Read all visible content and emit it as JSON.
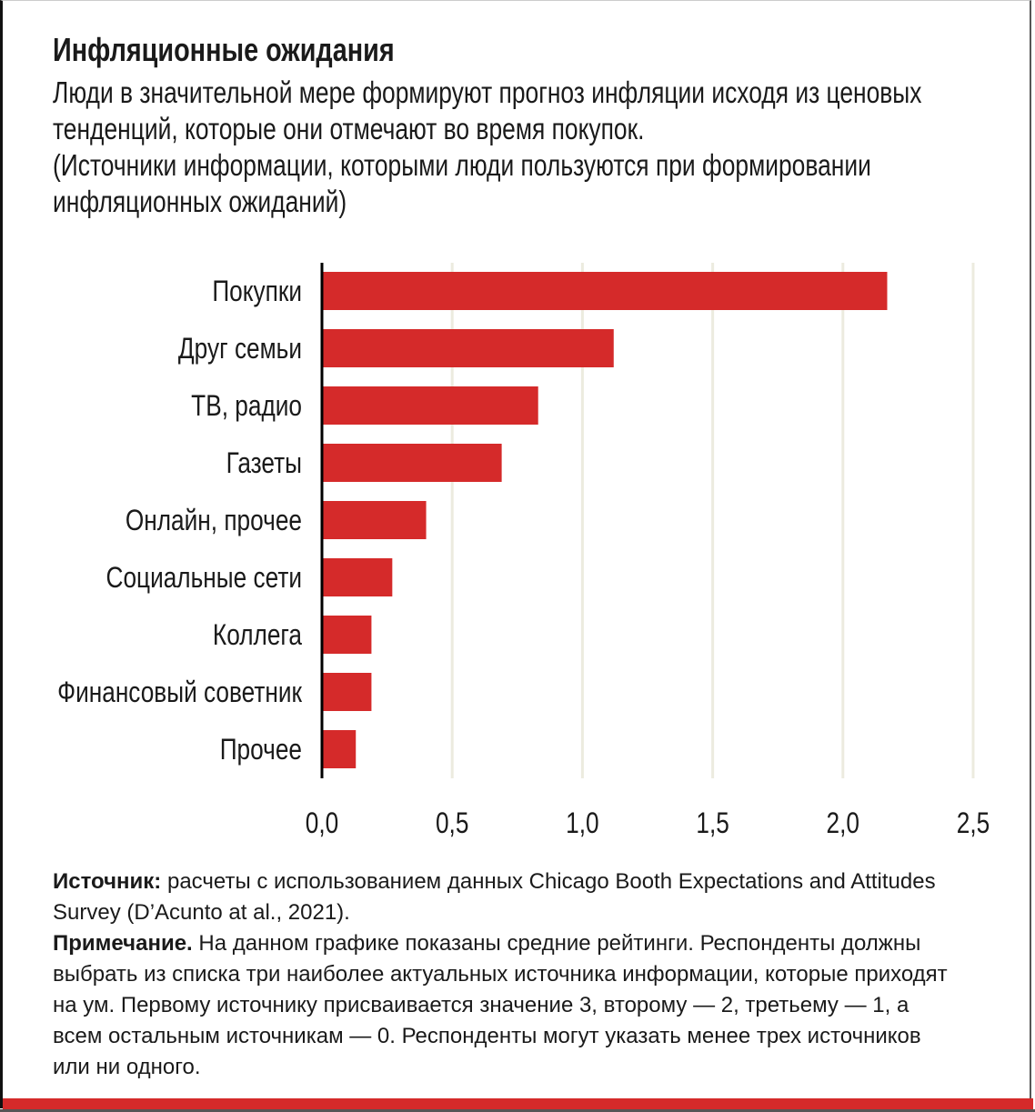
{
  "title": "Инфляционные ожидания",
  "subtitle_lines": [
    "Люди в значительной мере формируют прогноз инфляции исходя из ценовых",
    "тенденций, которые они отмечают во время покупок.",
    "(Источники информации, которыми люди пользуются при формировании",
    "инфляционных ожиданий)"
  ],
  "chart_data": {
    "type": "bar",
    "orientation": "horizontal",
    "categories": [
      "Покупки",
      "Друг семьи",
      "ТВ, радио",
      "Газеты",
      "Онлайн, прочее",
      "Социальные сети",
      "Коллега",
      "Финансовый советник",
      "Прочее"
    ],
    "values": [
      2.17,
      1.12,
      0.83,
      0.69,
      0.4,
      0.27,
      0.19,
      0.19,
      0.13
    ],
    "xlim": [
      0,
      2.5
    ],
    "xticks": [
      "0,0",
      "0,5",
      "1,0",
      "1,5",
      "2,0",
      "2,5"
    ],
    "xtick_values": [
      0,
      0.5,
      1.0,
      1.5,
      2.0,
      2.5
    ],
    "grid": "vertical",
    "bar_color": "#d52a2a",
    "grid_color": "#ecebdf"
  },
  "notes": {
    "source_label": "Источник:",
    "source_text": " расчеты с использованием данных Chicago Booth Expectations and Attitudes Survey (D’Acunto at al., 2021).",
    "note_label": "Примечание.",
    "note_text": " На данном графике показаны средние рейтинги. Респонденты должны выбрать из списка три наиболее актуальных источника информации, которые приходят на ум. Первому источнику присваивается значение 3, второму — 2, третьему — 1, а всем остальным источникам — 0. Респонденты могут указать менее трех источников или ни одного."
  },
  "colors": {
    "accent": "#d52a2a"
  }
}
